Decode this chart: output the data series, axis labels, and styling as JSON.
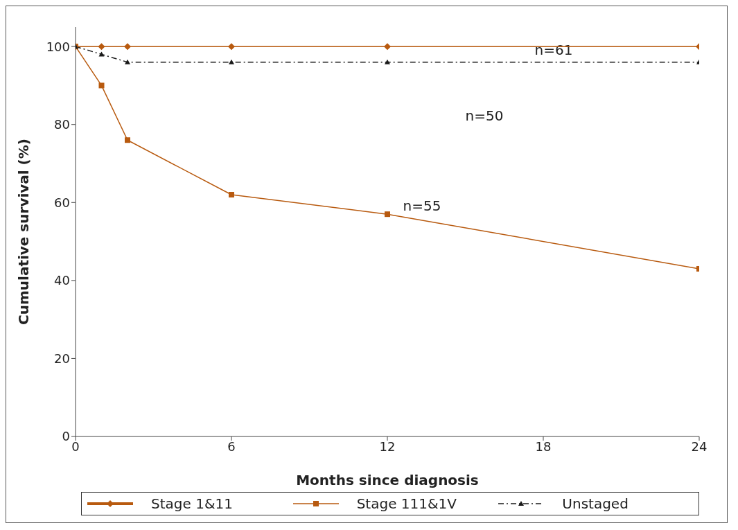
{
  "chart_data": {
    "type": "line",
    "xlabel": "Months since diagnosis",
    "ylabel": "Cumulative survival (%)",
    "xlim": [
      0,
      24
    ],
    "xticks": [
      0,
      6,
      12,
      18,
      24
    ],
    "ylim": [
      0,
      105
    ],
    "yticks": [
      0,
      20,
      40,
      60,
      80,
      100
    ],
    "grid": false,
    "legend": "bottom",
    "series": [
      {
        "name": "Stage 1&11",
        "color": "#b85a0f",
        "marker": "diamond",
        "line_style": "solid",
        "x": [
          0,
          1,
          2,
          6,
          12,
          24
        ],
        "values": [
          100,
          100,
          100,
          100,
          100,
          100
        ]
      },
      {
        "name": "Stage 111&1V",
        "color": "#b85a0f",
        "marker": "square",
        "line_style": "solid",
        "x": [
          0,
          1,
          2,
          6,
          12,
          24
        ],
        "values": [
          100,
          90,
          76,
          62,
          57,
          43
        ]
      },
      {
        "name": "Unstaged",
        "color": "#1a1a1a",
        "marker": "triangle",
        "line_style": "dashed",
        "x": [
          0,
          1,
          2,
          6,
          12,
          24
        ],
        "values": [
          100,
          98,
          96,
          96,
          96,
          96
        ]
      }
    ],
    "annotations": [
      "n=61",
      "n=50",
      "n=55"
    ]
  }
}
